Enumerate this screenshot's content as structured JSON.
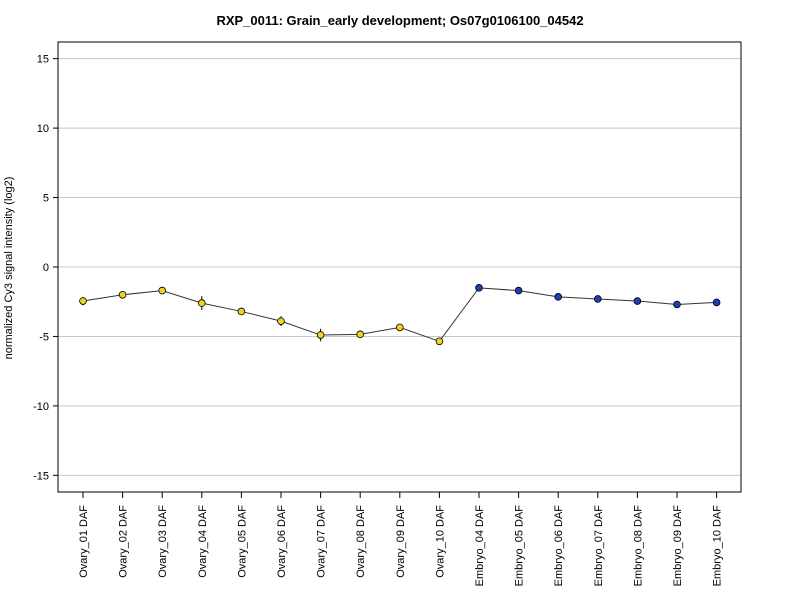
{
  "chart_data": {
    "type": "line",
    "title": "RXP_0011: Grain_early development; Os07g0106100_04542",
    "xlabel": "",
    "ylabel": "normalized Cy3 signal intensity (log2)",
    "ylim": [
      -16.2,
      16.2
    ],
    "yticks": [
      -15,
      -10,
      -5,
      0,
      5,
      10,
      15
    ],
    "grid": true,
    "categories": [
      "Ovary_01 DAF",
      "Ovary_02 DAF",
      "Ovary_03 DAF",
      "Ovary_04 DAF",
      "Ovary_05 DAF",
      "Ovary_06 DAF",
      "Ovary_07 DAF",
      "Ovary_08 DAF",
      "Ovary_09 DAF",
      "Ovary_10 DAF",
      "Embryo_04 DAF",
      "Embryo_05 DAF",
      "Embryo_06 DAF",
      "Embryo_07 DAF",
      "Embryo_08 DAF",
      "Embryo_09 DAF",
      "Embryo_10 DAF"
    ],
    "values": [
      -2.45,
      -2.0,
      -1.7,
      -2.6,
      -3.2,
      -3.9,
      -4.9,
      -4.85,
      -4.35,
      -5.35,
      -1.5,
      -1.7,
      -2.15,
      -2.3,
      -2.45,
      -2.7,
      -2.55
    ],
    "errors": [
      0.3,
      0.15,
      0.15,
      0.5,
      0.2,
      0.35,
      0.45,
      0.15,
      0.15,
      0.15,
      0.1,
      0.1,
      0.1,
      0.1,
      0.1,
      0.1,
      0.1
    ],
    "point_colors": [
      "#f2d21e",
      "#f2d21e",
      "#f2d21e",
      "#f2d21e",
      "#f2d21e",
      "#f2d21e",
      "#f2d21e",
      "#f2d21e",
      "#f2d21e",
      "#f2d21e",
      "#1c3fb8",
      "#1c3fb8",
      "#1c3fb8",
      "#1c3fb8",
      "#1c3fb8",
      "#1c3fb8",
      "#1c3fb8"
    ],
    "line_color": "#333333",
    "grid_color": "#c8c8c8"
  }
}
